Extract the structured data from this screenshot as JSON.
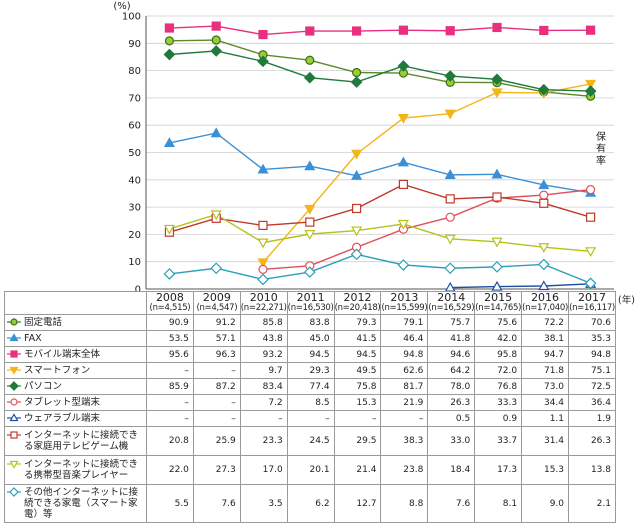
{
  "chart_data": {
    "type": "line",
    "y_unit": "(%)",
    "ylabel": "保有率",
    "x_unit": "(年)",
    "ylim": [
      0,
      100
    ],
    "yticks": [
      0,
      10,
      20,
      30,
      40,
      50,
      60,
      70,
      80,
      90,
      100
    ],
    "x": [
      "2008",
      "2009",
      "2010",
      "2011",
      "2012",
      "2013",
      "2014",
      "2015",
      "2016",
      "2017"
    ],
    "n_labels": [
      "(n=4,515)",
      "(n=4,547)",
      "(n=22,271)",
      "(n=16,530)",
      "(n=20,418)",
      "(n=15,599)",
      "(n=16,529)",
      "(n=14,765)",
      "(n=17,040)",
      "(n=16,117)"
    ],
    "series": [
      {
        "name": "固定電話",
        "color": "#9acd32",
        "stroke": "#3c6e1e",
        "marker": "circle",
        "values": [
          90.9,
          91.2,
          85.8,
          83.8,
          79.3,
          79.1,
          75.7,
          75.6,
          72.2,
          70.6
        ],
        "labels": [
          "90.9",
          "91.2",
          "85.8",
          "83.8",
          "79.3",
          "79.1",
          "75.7",
          "75.6",
          "72.2",
          "70.6"
        ]
      },
      {
        "name": "FAX",
        "color": "#3a8fd6",
        "stroke": "#3a8fd6",
        "marker": "triangle",
        "values": [
          53.5,
          57.1,
          43.8,
          45.0,
          41.5,
          46.4,
          41.8,
          42.0,
          38.1,
          35.3
        ],
        "labels": [
          "53.5",
          "57.1",
          "43.8",
          "45.0",
          "41.5",
          "46.4",
          "41.8",
          "42.0",
          "38.1",
          "35.3"
        ]
      },
      {
        "name": "モバイル端末全体",
        "color": "#e8307f",
        "stroke": "#e8307f",
        "marker": "square",
        "values": [
          95.6,
          96.3,
          93.2,
          94.5,
          94.5,
          94.8,
          94.6,
          95.8,
          94.7,
          94.8
        ],
        "labels": [
          "95.6",
          "96.3",
          "93.2",
          "94.5",
          "94.5",
          "94.8",
          "94.6",
          "95.8",
          "94.7",
          "94.8"
        ]
      },
      {
        "name": "スマートフォン",
        "color": "#f2b619",
        "stroke": "#f2b619",
        "marker": "triangle-down",
        "values": [
          null,
          null,
          9.7,
          29.3,
          49.5,
          62.6,
          64.2,
          72.0,
          71.8,
          75.1
        ],
        "labels": [
          "–",
          "–",
          "9.7",
          "29.3",
          "49.5",
          "62.6",
          "64.2",
          "72.0",
          "71.8",
          "75.1"
        ]
      },
      {
        "name": "パソコン",
        "color": "#1f7a3c",
        "stroke": "#1f7a3c",
        "marker": "diamond",
        "values": [
          85.9,
          87.2,
          83.4,
          77.4,
          75.8,
          81.7,
          78.0,
          76.8,
          73.0,
          72.5
        ],
        "labels": [
          "85.9",
          "87.2",
          "83.4",
          "77.4",
          "75.8",
          "81.7",
          "78.0",
          "76.8",
          "73.0",
          "72.5"
        ]
      },
      {
        "name": "タブレット型端末",
        "color": "#ffffff",
        "stroke": "#e0505a",
        "marker": "circle-open",
        "values": [
          null,
          null,
          7.2,
          8.5,
          15.3,
          21.9,
          26.3,
          33.3,
          34.4,
          36.4
        ],
        "labels": [
          "–",
          "–",
          "7.2",
          "8.5",
          "15.3",
          "21.9",
          "26.3",
          "33.3",
          "34.4",
          "36.4"
        ]
      },
      {
        "name": "ウェアラブル端末",
        "color": "#ffffff",
        "stroke": "#1f4fa0",
        "marker": "triangle-open",
        "values": [
          null,
          null,
          null,
          null,
          null,
          null,
          0.5,
          0.9,
          1.1,
          1.9
        ],
        "labels": [
          "–",
          "–",
          "–",
          "–",
          "–",
          "–",
          "0.5",
          "0.9",
          "1.1",
          "1.9"
        ]
      },
      {
        "name": "インターネットに接続できる家庭用テレビゲーム機",
        "color": "#ffffff",
        "stroke": "#c0392b",
        "marker": "square-open",
        "values": [
          20.8,
          25.9,
          23.3,
          24.5,
          29.5,
          38.3,
          33.0,
          33.7,
          31.4,
          26.3
        ],
        "labels": [
          "20.8",
          "25.9",
          "23.3",
          "24.5",
          "29.5",
          "38.3",
          "33.0",
          "33.7",
          "31.4",
          "26.3"
        ]
      },
      {
        "name": "インターネットに接続できる携帯型音楽プレイヤー",
        "color": "#ffffff",
        "stroke": "#b5c21c",
        "marker": "triangle-down-open",
        "values": [
          22.0,
          27.3,
          17.0,
          20.1,
          21.4,
          23.8,
          18.4,
          17.3,
          15.3,
          13.8
        ],
        "labels": [
          "22.0",
          "27.3",
          "17.0",
          "20.1",
          "21.4",
          "23.8",
          "18.4",
          "17.3",
          "15.3",
          "13.8"
        ]
      },
      {
        "name": "その他インターネットに接続できる家電（スマート家電）等",
        "color": "#ffffff",
        "stroke": "#2aa0b8",
        "marker": "diamond-open",
        "values": [
          5.5,
          7.6,
          3.5,
          6.2,
          12.7,
          8.8,
          7.6,
          8.1,
          9.0,
          2.1
        ],
        "labels": [
          "5.5",
          "7.6",
          "3.5",
          "6.2",
          "12.7",
          "8.8",
          "7.6",
          "8.1",
          "9.0",
          "2.1"
        ]
      }
    ]
  }
}
